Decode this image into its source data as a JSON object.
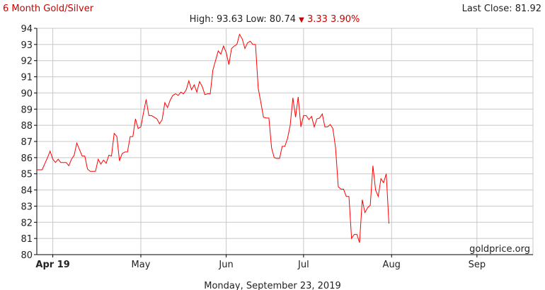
{
  "header": {
    "title": "6 Month Gold/Silver",
    "last_close_label": "Last Close: 81.92",
    "stats_prefix": "High: 93.63 Low: 80.74 ",
    "change_arrow": "▼",
    "change_text": "3.33 3.90%"
  },
  "colors": {
    "title": "#cc0000",
    "line": "#ff0000",
    "change": "#cc0000",
    "grid": "#c8c8c8",
    "axis": "#000000",
    "text": "#222222"
  },
  "footer": {
    "date": "Monday, September 23, 2019"
  },
  "watermark": "goldprice.org",
  "chart_data": {
    "type": "line",
    "title": "6 Month Gold/Silver",
    "xlabel": "",
    "ylabel": "",
    "ylim": [
      80,
      94
    ],
    "y_ticks": [
      80,
      81,
      82,
      83,
      84,
      85,
      86,
      87,
      88,
      89,
      90,
      91,
      92,
      93,
      94
    ],
    "x_ticks": [
      {
        "label": "Apr 19",
        "x": 6,
        "bold": true
      },
      {
        "label": "May",
        "x": 39
      },
      {
        "label": "Jun",
        "x": 71
      },
      {
        "label": "Jul",
        "x": 100
      },
      {
        "label": "Aug",
        "x": 133
      },
      {
        "label": "Sep",
        "x": 165
      }
    ],
    "xlim": [
      0,
      186
    ],
    "grid": true,
    "series": [
      {
        "values": [
          [
            0,
            85.25
          ],
          [
            2,
            85.25
          ],
          [
            4,
            86.0
          ],
          [
            5,
            86.4
          ],
          [
            6,
            85.9
          ],
          [
            7,
            85.7
          ],
          [
            8,
            85.9
          ],
          [
            9,
            85.7
          ],
          [
            10,
            85.7
          ],
          [
            11,
            85.7
          ],
          [
            12,
            85.5
          ],
          [
            13,
            85.9
          ],
          [
            14,
            86.15
          ],
          [
            15,
            86.9
          ],
          [
            16,
            86.5
          ],
          [
            17,
            86.1
          ],
          [
            18,
            86.1
          ],
          [
            19,
            85.3
          ],
          [
            20,
            85.15
          ],
          [
            21,
            85.15
          ],
          [
            22,
            85.15
          ],
          [
            23,
            85.9
          ],
          [
            24,
            85.6
          ],
          [
            25,
            85.85
          ],
          [
            26,
            85.65
          ],
          [
            27,
            86.15
          ],
          [
            28,
            86.1
          ],
          [
            29,
            87.5
          ],
          [
            30,
            87.3
          ],
          [
            31,
            85.8
          ],
          [
            32,
            86.25
          ],
          [
            33,
            86.35
          ],
          [
            34,
            86.35
          ],
          [
            35,
            87.3
          ],
          [
            36,
            87.3
          ],
          [
            37,
            88.4
          ],
          [
            38,
            87.8
          ],
          [
            39,
            87.9
          ],
          [
            40,
            88.8
          ],
          [
            41,
            89.6
          ],
          [
            42,
            88.6
          ],
          [
            43,
            88.6
          ],
          [
            44,
            88.5
          ],
          [
            45,
            88.4
          ],
          [
            46,
            88.1
          ],
          [
            47,
            88.35
          ],
          [
            48,
            89.4
          ],
          [
            49,
            89.1
          ],
          [
            50,
            89.55
          ],
          [
            51,
            89.85
          ],
          [
            52,
            89.95
          ],
          [
            53,
            89.85
          ],
          [
            54,
            90.05
          ],
          [
            55,
            89.95
          ],
          [
            56,
            90.2
          ],
          [
            57,
            90.75
          ],
          [
            58,
            90.2
          ],
          [
            59,
            90.5
          ],
          [
            60,
            90.05
          ],
          [
            61,
            90.7
          ],
          [
            62,
            90.4
          ],
          [
            63,
            89.9
          ],
          [
            64,
            89.95
          ],
          [
            65,
            89.95
          ],
          [
            66,
            91.4
          ],
          [
            67,
            92.0
          ],
          [
            68,
            92.6
          ],
          [
            69,
            92.4
          ],
          [
            70,
            92.9
          ],
          [
            71,
            92.5
          ],
          [
            72,
            91.75
          ],
          [
            73,
            92.75
          ],
          [
            74,
            92.9
          ],
          [
            75,
            93.0
          ],
          [
            76,
            93.63
          ],
          [
            77,
            93.35
          ],
          [
            78,
            92.75
          ],
          [
            79,
            93.1
          ],
          [
            80,
            93.2
          ],
          [
            81,
            93.0
          ],
          [
            82,
            93.0
          ],
          [
            83,
            90.3
          ],
          [
            84,
            89.4
          ],
          [
            85,
            88.5
          ],
          [
            86,
            88.45
          ],
          [
            87,
            88.45
          ],
          [
            88,
            86.6
          ],
          [
            89,
            86.0
          ],
          [
            90,
            85.95
          ],
          [
            91,
            85.95
          ],
          [
            92,
            86.7
          ],
          [
            93,
            86.7
          ],
          [
            94,
            87.2
          ],
          [
            95,
            88.0
          ],
          [
            96,
            89.7
          ],
          [
            97,
            88.5
          ],
          [
            98,
            89.75
          ],
          [
            99,
            87.9
          ],
          [
            100,
            88.6
          ],
          [
            101,
            88.6
          ],
          [
            102,
            88.35
          ],
          [
            103,
            88.55
          ],
          [
            104,
            87.9
          ],
          [
            105,
            88.4
          ],
          [
            106,
            88.45
          ],
          [
            107,
            88.7
          ],
          [
            108,
            87.9
          ],
          [
            109,
            87.9
          ],
          [
            110,
            88.05
          ],
          [
            111,
            87.8
          ],
          [
            112,
            86.6
          ],
          [
            113,
            84.2
          ],
          [
            114,
            84.05
          ],
          [
            115,
            84.05
          ],
          [
            116,
            83.6
          ],
          [
            117,
            83.6
          ],
          [
            118,
            81.0
          ],
          [
            119,
            81.25
          ],
          [
            120,
            81.25
          ],
          [
            121,
            80.74
          ],
          [
            122,
            83.4
          ],
          [
            123,
            82.6
          ],
          [
            124,
            82.9
          ],
          [
            125,
            83.05
          ],
          [
            126,
            85.5
          ],
          [
            127,
            84.0
          ],
          [
            128,
            83.6
          ],
          [
            129,
            84.7
          ],
          [
            130,
            84.45
          ],
          [
            131,
            85.0
          ],
          [
            132,
            81.92
          ]
        ]
      }
    ]
  }
}
